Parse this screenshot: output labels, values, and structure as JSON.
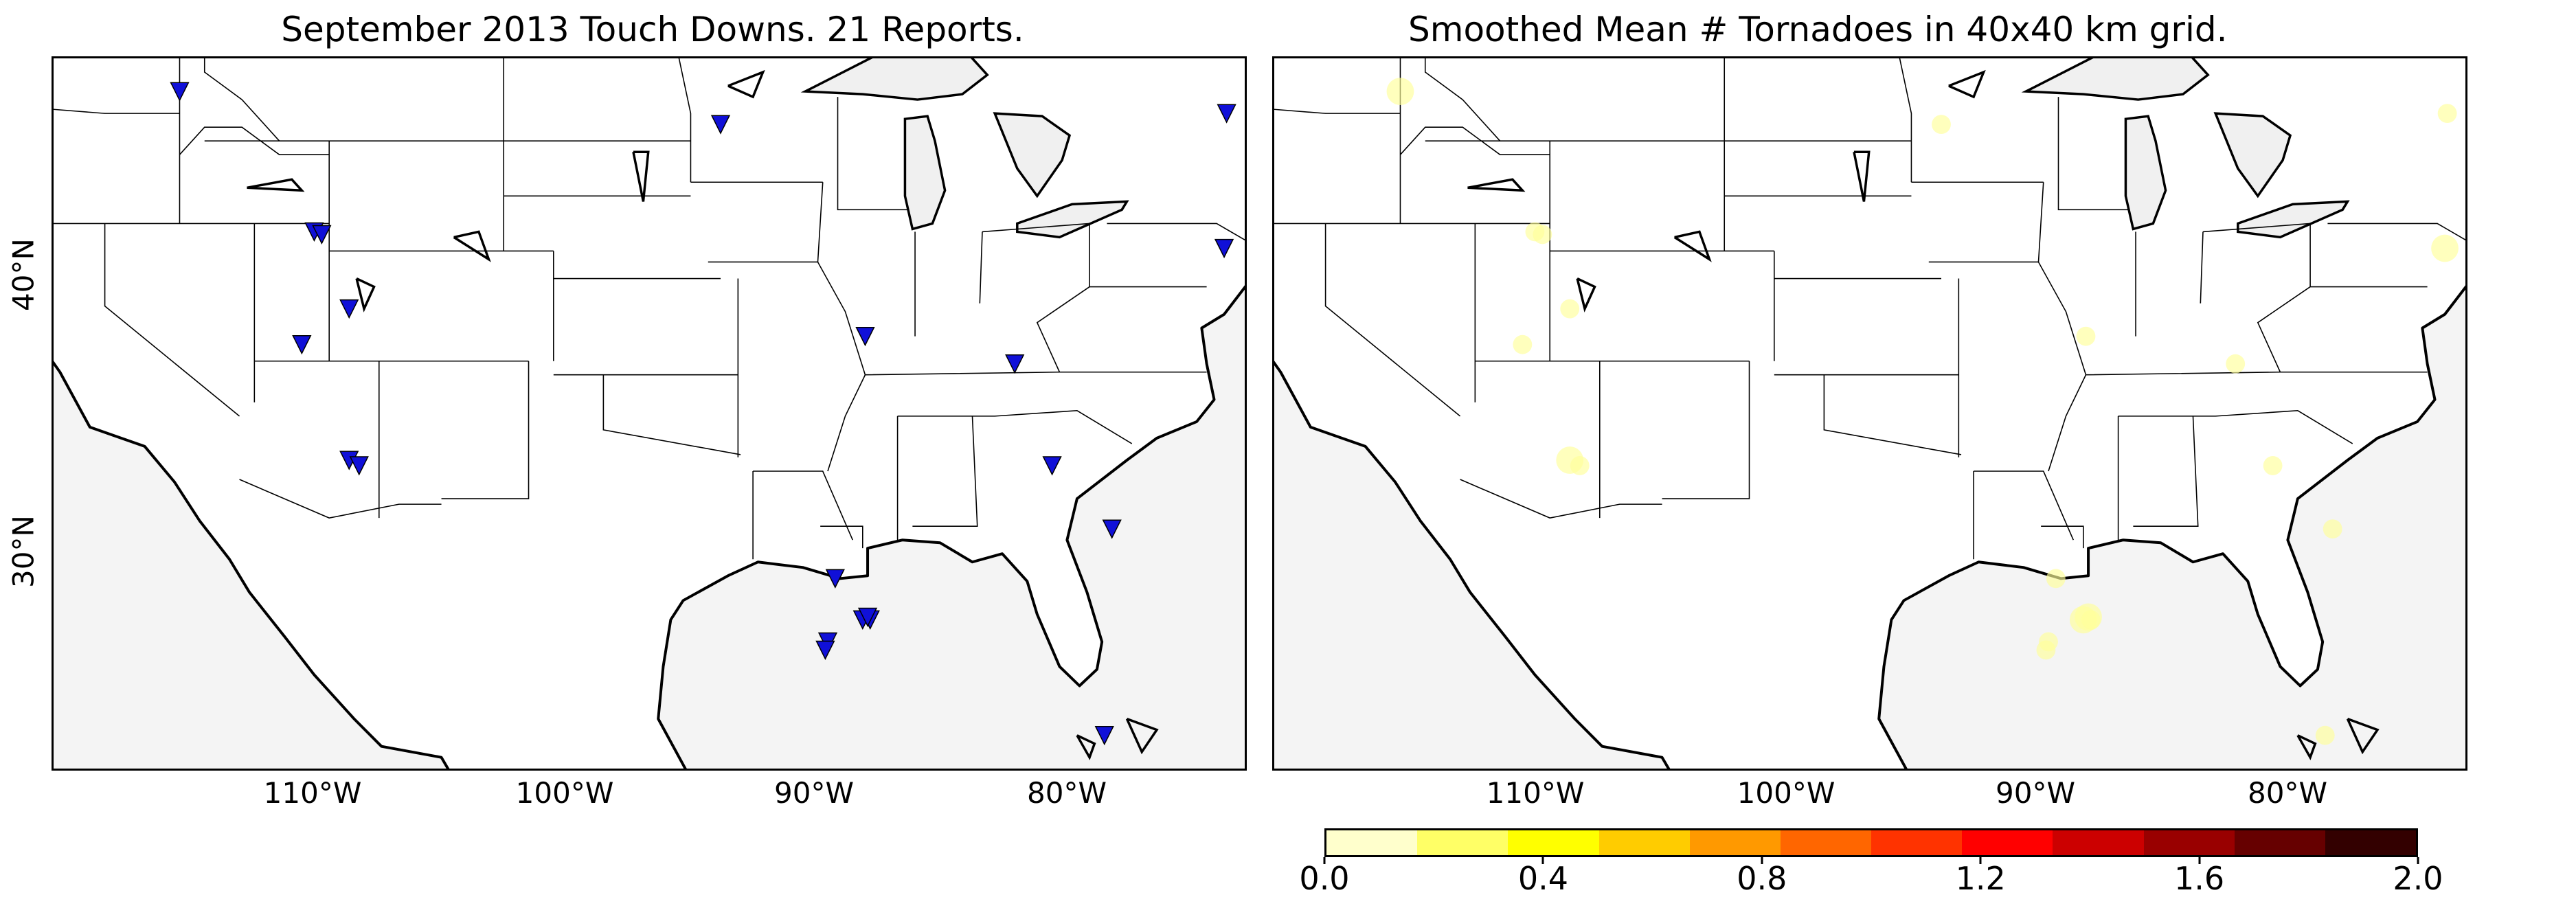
{
  "panels": [
    {
      "id": "reports",
      "title": "September 2013 Touch Downs. 21 Reports.",
      "lon_ticks": [
        "110°W",
        "100°W",
        "90°W",
        "80°W"
      ],
      "lat_ticks": [
        "40°N",
        "30°N"
      ],
      "reports": [
        {
          "lon": -117.0,
          "lat": 46.8
        },
        {
          "lon": -95.3,
          "lat": 45.6
        },
        {
          "lon": -75.0,
          "lat": 46.0
        },
        {
          "lon": -111.6,
          "lat": 41.7
        },
        {
          "lon": -111.3,
          "lat": 41.6
        },
        {
          "lon": -75.1,
          "lat": 41.1
        },
        {
          "lon": -110.2,
          "lat": 38.9
        },
        {
          "lon": -112.1,
          "lat": 37.6
        },
        {
          "lon": -89.5,
          "lat": 37.9
        },
        {
          "lon": -83.5,
          "lat": 36.9
        },
        {
          "lon": -110.2,
          "lat": 33.4
        },
        {
          "lon": -109.8,
          "lat": 33.2
        },
        {
          "lon": -82.0,
          "lat": 33.2
        },
        {
          "lon": -79.6,
          "lat": 30.9
        },
        {
          "lon": -90.7,
          "lat": 29.1
        },
        {
          "lon": -89.6,
          "lat": 27.6
        },
        {
          "lon": -89.3,
          "lat": 27.6
        },
        {
          "lon": -91.0,
          "lat": 26.8
        },
        {
          "lon": -91.1,
          "lat": 26.5
        },
        {
          "lon": -79.9,
          "lat": 23.4
        },
        {
          "lon": -89.4,
          "lat": 27.7
        }
      ]
    },
    {
      "id": "smoothed",
      "title": "Smoothed Mean # Tornadoes in 40x40 km grid.",
      "lon_ticks": [
        "110°W",
        "100°W",
        "90°W",
        "80°W"
      ]
    }
  ],
  "colorbar": {
    "labels": [
      "0.0",
      "0.4",
      "0.8",
      "1.2",
      "1.6",
      "2.0"
    ],
    "colors": [
      "#ffffcc",
      "#ffff66",
      "#ffff00",
      "#ffcc00",
      "#ff9900",
      "#ff6600",
      "#ff3300",
      "#ff0000",
      "#cc0000",
      "#990000",
      "#660000",
      "#330000"
    ],
    "ticks": [
      0.0,
      0.4,
      0.8,
      1.2,
      1.6,
      2.0
    ],
    "min": 0.0,
    "max": 2.0
  },
  "colors": {
    "marker": "#1010d8",
    "ocean": "#f4f4f4",
    "land": "#ffffff"
  }
}
